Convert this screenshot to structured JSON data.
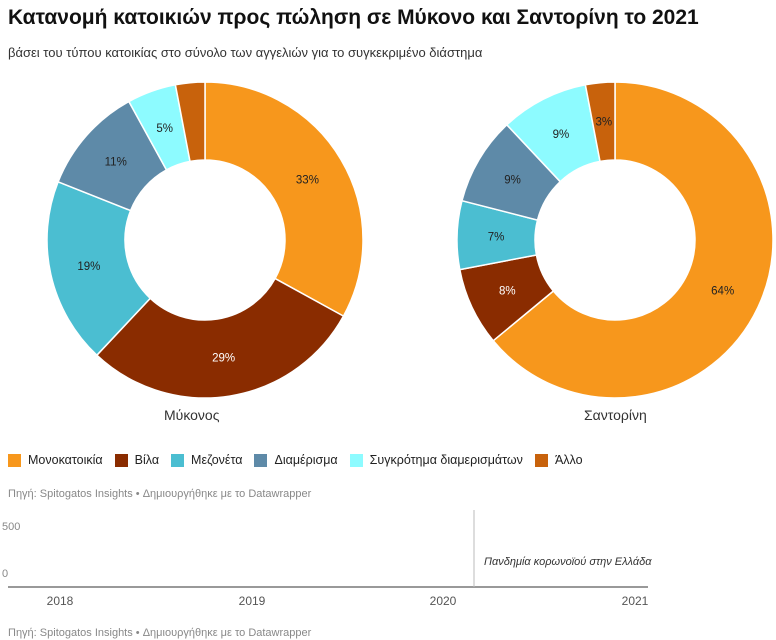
{
  "title": "Κατανομή κατοικιών προς πώληση σε Μύκονο και Σαντορίνη το 2021",
  "subtitle": "βάσει του τύπου κατοικίας στο σύνολο των αγγελιών για το συγκεκριμένο διάστημα",
  "colors": {
    "Μονοκατοικία": "#f7971c",
    "Βίλα": "#8a2c00",
    "Μεζονέτα": "#4bbed1",
    "Διαμέρισμα": "#5e8aa8",
    "Συγκρότημα διαμερισμάτων": "#8dfbff",
    "Άλλο": "#c8620c"
  },
  "legend": [
    "Μονοκατοικία",
    "Βίλα",
    "Μεζονέτα",
    "Διαμέρισμα",
    "Συγκρότημα διαμερισμάτων",
    "Άλλο"
  ],
  "chart_data": [
    {
      "type": "pie",
      "name": "Μύκονος",
      "categories": [
        "Μονοκατοικία",
        "Βίλα",
        "Μεζονέτα",
        "Διαμέρισμα",
        "Συγκρότημα διαμερισμάτων",
        "Άλλο"
      ],
      "values": [
        33,
        29,
        19,
        11,
        5,
        3
      ],
      "labels": [
        "33%",
        "29%",
        "19%",
        "11%",
        "5%",
        ""
      ]
    },
    {
      "type": "pie",
      "name": "Σαντορίνη",
      "categories": [
        "Μονοκατοικία",
        "Βίλα",
        "Μεζονέτα",
        "Διαμέρισμα",
        "Συγκρότημα διαμερισμάτων",
        "Άλλο"
      ],
      "values": [
        64,
        8,
        7,
        9,
        9,
        3
      ],
      "labels": [
        "64%",
        "8%",
        "7%",
        "9%",
        "9%",
        "3%"
      ]
    },
    {
      "type": "line",
      "x_ticks": [
        "2018",
        "2019",
        "2020",
        "2021"
      ],
      "y_ticks": [
        "500",
        "0"
      ],
      "annotation": "Πανδημία κορωνοϊού στην Ελλάδα",
      "series": []
    }
  ],
  "source": "Πηγή: Spitogatos Insights • Δημιουργήθηκε με το Datawrapper",
  "source2": "Πηγή: Spitogatos Insights • Δημιουργήθηκε με το Datawrapper"
}
